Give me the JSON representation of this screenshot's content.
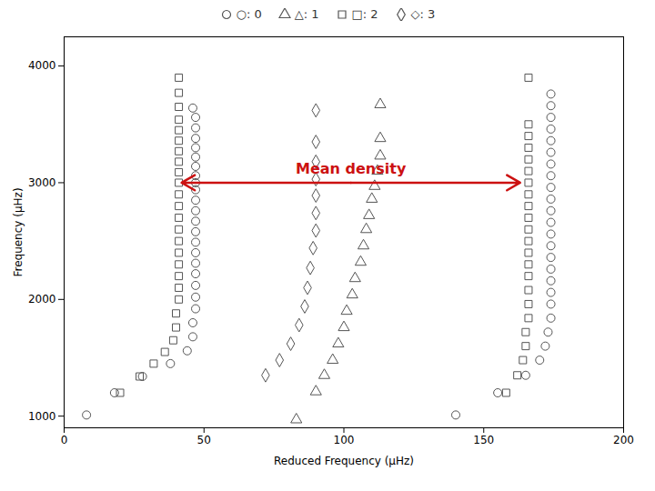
{
  "chart_data": {
    "type": "scatter",
    "xlabel": "Reduced Frequency (μHz)",
    "ylabel": "Frequency (μHz)",
    "xlim": [
      0,
      200
    ],
    "ylim": [
      900,
      4250
    ],
    "xticks": [
      0,
      50,
      100,
      150,
      200
    ],
    "yticks": [
      1000,
      2000,
      3000,
      4000
    ],
    "grid": false,
    "legend": "top",
    "series": [
      {
        "name": "○: 0",
        "color": "#555555",
        "marker": "circle",
        "x": [
          8,
          18,
          28,
          38,
          44,
          46,
          46,
          47,
          47,
          47,
          47,
          47,
          47,
          47,
          47,
          47,
          47,
          47,
          47,
          47,
          47,
          47,
          47,
          47,
          47,
          47,
          47,
          46,
          140,
          155,
          165,
          170,
          172,
          173,
          174,
          174,
          174,
          174,
          174,
          174,
          174,
          174,
          174,
          174,
          174,
          174,
          174,
          174,
          174,
          174,
          174,
          174,
          174,
          174
        ],
        "values": [
          1010,
          1200,
          1340,
          1450,
          1560,
          1680,
          1800,
          1920,
          2020,
          2120,
          2220,
          2310,
          2400,
          2490,
          2580,
          2670,
          2760,
          2850,
          2940,
          3000,
          3060,
          3140,
          3220,
          3300,
          3380,
          3470,
          3560,
          3640,
          1010,
          1200,
          1350,
          1480,
          1600,
          1720,
          1840,
          1960,
          2060,
          2160,
          2260,
          2360,
          2460,
          2560,
          2660,
          2760,
          2860,
          2960,
          3060,
          3160,
          3260,
          3360,
          3460,
          3560,
          3660,
          3760
        ]
      },
      {
        "name": "△: 1",
        "color": "#555555",
        "marker": "triangle",
        "x": [
          83,
          90,
          93,
          96,
          98,
          100,
          101,
          103,
          104,
          106,
          107,
          108,
          109,
          110,
          111,
          112,
          113,
          113,
          113
        ],
        "values": [
          970,
          1210,
          1350,
          1480,
          1620,
          1760,
          1900,
          2040,
          2180,
          2320,
          2460,
          2600,
          2720,
          2860,
          2970,
          3100,
          3230,
          3380,
          3670
        ]
      },
      {
        "name": "□: 2",
        "color": "#555555",
        "marker": "square",
        "x": [
          20,
          27,
          32,
          36,
          39,
          40,
          40,
          41,
          41,
          41,
          41,
          41,
          41,
          41,
          41,
          41,
          41,
          41,
          41,
          41,
          41,
          41,
          41,
          41,
          41,
          41,
          41,
          158,
          162,
          164,
          165,
          165,
          166,
          166,
          166,
          166,
          166,
          166,
          166,
          166,
          166,
          166,
          166,
          166,
          166,
          166,
          166,
          166,
          166,
          166
        ],
        "values": [
          1200,
          1340,
          1450,
          1550,
          1650,
          1760,
          1880,
          2000,
          2100,
          2200,
          2300,
          2400,
          2500,
          2600,
          2700,
          2800,
          2900,
          3000,
          3090,
          3180,
          3270,
          3360,
          3450,
          3540,
          3650,
          3770,
          3900,
          1200,
          1350,
          1480,
          1600,
          1720,
          1840,
          1960,
          2080,
          2200,
          2300,
          2400,
          2500,
          2600,
          2700,
          2800,
          2900,
          3000,
          3100,
          3200,
          3300,
          3400,
          3500,
          3900
        ]
      },
      {
        "name": "◇: 3",
        "color": "#555555",
        "marker": "diamond",
        "x": [
          72,
          77,
          81,
          84,
          86,
          87,
          88,
          89,
          90,
          90,
          90,
          90,
          90,
          90,
          90
        ],
        "values": [
          1350,
          1480,
          1620,
          1780,
          1940,
          2100,
          2270,
          2440,
          2590,
          2740,
          2890,
          3030,
          3180,
          3350,
          3620
        ]
      }
    ],
    "annotations": [
      {
        "type": "arrow",
        "text": "Mean density",
        "x_start": 42,
        "x_end": 163,
        "y": 3000,
        "color": "#cc1111"
      }
    ]
  }
}
